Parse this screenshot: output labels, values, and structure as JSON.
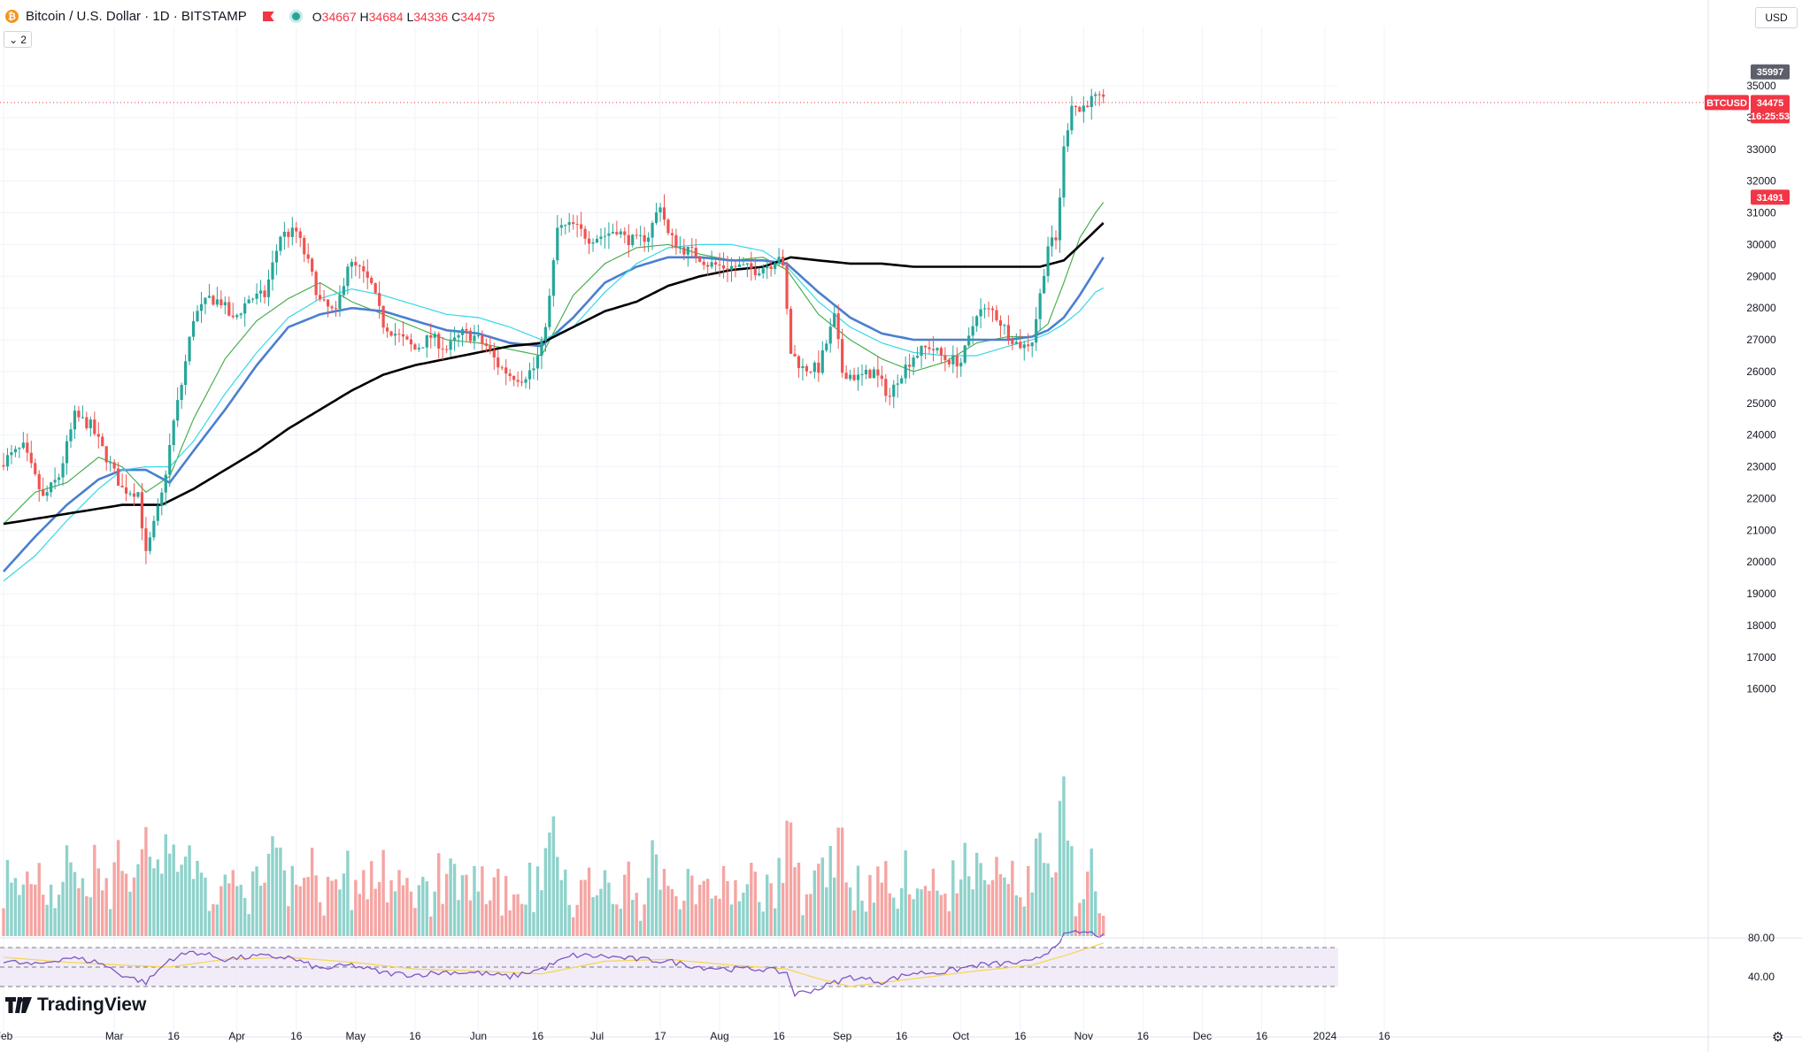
{
  "header": {
    "symbol_title": "Bitcoin / U.S. Dollar · 1D · BITSTAMP",
    "open_label": "O",
    "open": "34667",
    "high_label": "H",
    "high": "34684",
    "low_label": "L",
    "low": "34336",
    "close_label": "C",
    "close": "34475",
    "indicator_count": "2"
  },
  "toolbar": {
    "currency": "USD"
  },
  "branding": {
    "logo_text": "TradingView"
  },
  "colors": {
    "up": "#26a69a",
    "down": "#ef5350",
    "ma_blue": "#4a7fd0",
    "ma_black": "#000000",
    "ma_green": "#4caf50",
    "ma_cyan": "#37d7e8",
    "rsi_line": "#7e57c2",
    "rsi_ma": "#f7d54d",
    "price_line": "#f23645"
  },
  "chart_data": {
    "type": "candlestick",
    "symbol": "BTCUSD",
    "timeframe": "1D",
    "price_axis": {
      "ticks": [
        16000,
        17000,
        18000,
        19000,
        20000,
        21000,
        22000,
        23000,
        24000,
        25000,
        26000,
        27000,
        28000,
        29000,
        30000,
        31000,
        32000,
        33000,
        34000,
        35000
      ],
      "range": [
        15000,
        36500
      ]
    },
    "x_axis_labels": [
      {
        "label": "Feb",
        "day": 0
      },
      {
        "label": "Mar",
        "day": 28
      },
      {
        "label": "16",
        "day": 43
      },
      {
        "label": "Apr",
        "day": 59
      },
      {
        "label": "16",
        "day": 74
      },
      {
        "label": "May",
        "day": 89
      },
      {
        "label": "16",
        "day": 104
      },
      {
        "label": "Jun",
        "day": 120
      },
      {
        "label": "16",
        "day": 135
      },
      {
        "label": "Jul",
        "day": 150
      },
      {
        "label": "17",
        "day": 166
      },
      {
        "label": "Aug",
        "day": 181
      },
      {
        "label": "16",
        "day": 196
      },
      {
        "label": "Sep",
        "day": 212
      },
      {
        "label": "16",
        "day": 227
      },
      {
        "label": "Oct",
        "day": 242
      },
      {
        "label": "16",
        "day": 257
      },
      {
        "label": "Nov",
        "day": 273
      },
      {
        "label": "16",
        "day": 288
      },
      {
        "label": "Dec",
        "day": 303
      },
      {
        "label": "16",
        "day": 318
      },
      {
        "label": "2024",
        "day": 334
      },
      {
        "label": "16",
        "day": 349
      }
    ],
    "price_labels": [
      {
        "text": "35997",
        "value": 35997,
        "kind": "high"
      },
      {
        "text": "BTCUSD",
        "value": 34475,
        "kind": "symbol"
      },
      {
        "text": "34475",
        "value": 34475,
        "kind": "last"
      },
      {
        "text": "16:25:53",
        "value": 34475,
        "kind": "countdown"
      },
      {
        "text": "31491",
        "value": 31491,
        "kind": "ma"
      }
    ],
    "close_anchors": [
      [
        0,
        23200
      ],
      [
        5,
        23600
      ],
      [
        10,
        22000
      ],
      [
        14,
        22700
      ],
      [
        18,
        24600
      ],
      [
        22,
        24300
      ],
      [
        26,
        23300
      ],
      [
        30,
        22300
      ],
      [
        34,
        22200
      ],
      [
        36,
        20200
      ],
      [
        40,
        22100
      ],
      [
        43,
        24400
      ],
      [
        45,
        25600
      ],
      [
        48,
        27700
      ],
      [
        52,
        28300
      ],
      [
        55,
        28200
      ],
      [
        58,
        27600
      ],
      [
        62,
        28300
      ],
      [
        66,
        28400
      ],
      [
        70,
        30300
      ],
      [
        74,
        30400
      ],
      [
        77,
        29400
      ],
      [
        80,
        28200
      ],
      [
        84,
        27800
      ],
      [
        87,
        29400
      ],
      [
        90,
        29200
      ],
      [
        93,
        28700
      ],
      [
        96,
        27500
      ],
      [
        100,
        27100
      ],
      [
        104,
        26700
      ],
      [
        108,
        27100
      ],
      [
        112,
        26700
      ],
      [
        116,
        27200
      ],
      [
        119,
        27100
      ],
      [
        122,
        26800
      ],
      [
        125,
        26200
      ],
      [
        128,
        25900
      ],
      [
        131,
        25800
      ],
      [
        134,
        26100
      ],
      [
        136,
        26800
      ],
      [
        138,
        28300
      ],
      [
        140,
        30500
      ],
      [
        144,
        30600
      ],
      [
        148,
        30200
      ],
      [
        152,
        30300
      ],
      [
        155,
        30500
      ],
      [
        157,
        30200
      ],
      [
        160,
        30100
      ],
      [
        163,
        30300
      ],
      [
        166,
        31300
      ],
      [
        168,
        30300
      ],
      [
        171,
        29900
      ],
      [
        175,
        29700
      ],
      [
        178,
        29400
      ],
      [
        182,
        29300
      ],
      [
        186,
        29300
      ],
      [
        190,
        29200
      ],
      [
        194,
        29400
      ],
      [
        196,
        29700
      ],
      [
        197,
        29200
      ],
      [
        199,
        26600
      ],
      [
        202,
        26100
      ],
      [
        206,
        26100
      ],
      [
        210,
        27700
      ],
      [
        212,
        26000
      ],
      [
        216,
        25800
      ],
      [
        220,
        26000
      ],
      [
        224,
        25200
      ],
      [
        226,
        25800
      ],
      [
        230,
        26500
      ],
      [
        234,
        26800
      ],
      [
        238,
        26400
      ],
      [
        242,
        26300
      ],
      [
        244,
        27000
      ],
      [
        246,
        27900
      ],
      [
        250,
        27900
      ],
      [
        254,
        27200
      ],
      [
        256,
        26900
      ],
      [
        258,
        26800
      ],
      [
        260,
        27000
      ],
      [
        262,
        28400
      ],
      [
        264,
        30000
      ],
      [
        266,
        30100
      ],
      [
        268,
        33000
      ],
      [
        270,
        34500
      ],
      [
        272,
        34200
      ],
      [
        274,
        34500
      ],
      [
        276,
        34600
      ],
      [
        278,
        34475
      ]
    ],
    "ma_series": [
      {
        "color": "#4caf50",
        "period": 20,
        "anchors": [
          [
            0,
            21200
          ],
          [
            8,
            22200
          ],
          [
            16,
            22500
          ],
          [
            24,
            23300
          ],
          [
            30,
            23000
          ],
          [
            36,
            22200
          ],
          [
            42,
            22700
          ],
          [
            48,
            24500
          ],
          [
            56,
            26400
          ],
          [
            64,
            27600
          ],
          [
            72,
            28300
          ],
          [
            80,
            28800
          ],
          [
            88,
            28200
          ],
          [
            96,
            27800
          ],
          [
            104,
            27400
          ],
          [
            112,
            27000
          ],
          [
            120,
            26900
          ],
          [
            128,
            26700
          ],
          [
            136,
            26500
          ],
          [
            144,
            28400
          ],
          [
            152,
            29400
          ],
          [
            160,
            29900
          ],
          [
            168,
            30000
          ],
          [
            176,
            29700
          ],
          [
            184,
            29500
          ],
          [
            192,
            29600
          ],
          [
            198,
            29200
          ],
          [
            206,
            27800
          ],
          [
            214,
            27000
          ],
          [
            222,
            26400
          ],
          [
            230,
            26000
          ],
          [
            238,
            26300
          ],
          [
            246,
            26900
          ],
          [
            254,
            27100
          ],
          [
            260,
            27100
          ],
          [
            264,
            27500
          ],
          [
            268,
            28800
          ],
          [
            272,
            30200
          ],
          [
            276,
            31000
          ],
          [
            279,
            31491
          ]
        ]
      },
      {
        "color": "#4a7fd0",
        "period": 50,
        "anchors": [
          [
            0,
            19700
          ],
          [
            8,
            20800
          ],
          [
            16,
            21800
          ],
          [
            24,
            22600
          ],
          [
            30,
            22900
          ],
          [
            36,
            22900
          ],
          [
            42,
            22500
          ],
          [
            48,
            23500
          ],
          [
            56,
            24800
          ],
          [
            64,
            26200
          ],
          [
            72,
            27400
          ],
          [
            80,
            27800
          ],
          [
            88,
            28000
          ],
          [
            96,
            27900
          ],
          [
            104,
            27600
          ],
          [
            112,
            27300
          ],
          [
            120,
            27200
          ],
          [
            128,
            26900
          ],
          [
            136,
            26800
          ],
          [
            144,
            27700
          ],
          [
            152,
            28800
          ],
          [
            160,
            29300
          ],
          [
            168,
            29600
          ],
          [
            176,
            29600
          ],
          [
            184,
            29500
          ],
          [
            192,
            29500
          ],
          [
            198,
            29400
          ],
          [
            206,
            28500
          ],
          [
            214,
            27700
          ],
          [
            222,
            27200
          ],
          [
            230,
            27000
          ],
          [
            238,
            27000
          ],
          [
            246,
            27000
          ],
          [
            254,
            27000
          ],
          [
            260,
            27100
          ],
          [
            264,
            27300
          ],
          [
            268,
            27700
          ],
          [
            272,
            28400
          ],
          [
            276,
            29200
          ],
          [
            279,
            29800
          ]
        ]
      },
      {
        "color": "#37d7e8",
        "period": 30,
        "anchors": [
          [
            0,
            19400
          ],
          [
            8,
            20200
          ],
          [
            16,
            21300
          ],
          [
            24,
            22300
          ],
          [
            30,
            22900
          ],
          [
            36,
            23000
          ],
          [
            42,
            23000
          ],
          [
            48,
            23800
          ],
          [
            56,
            25300
          ],
          [
            64,
            26600
          ],
          [
            72,
            27700
          ],
          [
            80,
            28300
          ],
          [
            88,
            28600
          ],
          [
            96,
            28400
          ],
          [
            104,
            28100
          ],
          [
            112,
            27800
          ],
          [
            120,
            27700
          ],
          [
            128,
            27400
          ],
          [
            136,
            27000
          ],
          [
            144,
            27400
          ],
          [
            152,
            28500
          ],
          [
            160,
            29400
          ],
          [
            168,
            29900
          ],
          [
            176,
            30000
          ],
          [
            184,
            30000
          ],
          [
            192,
            29800
          ],
          [
            198,
            29300
          ],
          [
            206,
            28200
          ],
          [
            214,
            27400
          ],
          [
            222,
            26900
          ],
          [
            230,
            26600
          ],
          [
            238,
            26500
          ],
          [
            246,
            26500
          ],
          [
            254,
            26800
          ],
          [
            260,
            27000
          ],
          [
            264,
            27200
          ],
          [
            268,
            27500
          ],
          [
            272,
            27900
          ],
          [
            276,
            28500
          ],
          [
            279,
            28700
          ]
        ]
      },
      {
        "color": "#000000",
        "period": 200,
        "anchors": [
          [
            0,
            21200
          ],
          [
            10,
            21400
          ],
          [
            20,
            21600
          ],
          [
            30,
            21800
          ],
          [
            40,
            21800
          ],
          [
            48,
            22300
          ],
          [
            56,
            22900
          ],
          [
            64,
            23500
          ],
          [
            72,
            24200
          ],
          [
            80,
            24800
          ],
          [
            88,
            25400
          ],
          [
            96,
            25900
          ],
          [
            104,
            26200
          ],
          [
            112,
            26400
          ],
          [
            120,
            26600
          ],
          [
            128,
            26800
          ],
          [
            136,
            26900
          ],
          [
            144,
            27400
          ],
          [
            152,
            27900
          ],
          [
            160,
            28200
          ],
          [
            168,
            28700
          ],
          [
            176,
            29000
          ],
          [
            184,
            29200
          ],
          [
            192,
            29300
          ],
          [
            199,
            29600
          ],
          [
            206,
            29500
          ],
          [
            214,
            29400
          ],
          [
            222,
            29400
          ],
          [
            230,
            29300
          ],
          [
            238,
            29300
          ],
          [
            246,
            29300
          ],
          [
            254,
            29300
          ],
          [
            262,
            29300
          ],
          [
            268,
            29500
          ],
          [
            274,
            30200
          ],
          [
            279,
            30800
          ]
        ]
      }
    ],
    "rsi": {
      "levels": [
        {
          "text": "80.00",
          "value": 80
        },
        {
          "text": "40.00",
          "value": 40
        }
      ],
      "band": [
        30,
        70
      ],
      "anchors": [
        [
          0,
          56
        ],
        [
          8,
          52
        ],
        [
          16,
          60
        ],
        [
          24,
          55
        ],
        [
          30,
          42
        ],
        [
          36,
          34
        ],
        [
          42,
          58
        ],
        [
          48,
          66
        ],
        [
          56,
          58
        ],
        [
          64,
          61
        ],
        [
          72,
          60
        ],
        [
          80,
          48
        ],
        [
          88,
          52
        ],
        [
          96,
          44
        ],
        [
          104,
          42
        ],
        [
          112,
          45
        ],
        [
          120,
          44
        ],
        [
          128,
          40
        ],
        [
          136,
          48
        ],
        [
          144,
          62
        ],
        [
          152,
          61
        ],
        [
          160,
          58
        ],
        [
          168,
          56
        ],
        [
          176,
          50
        ],
        [
          184,
          48
        ],
        [
          192,
          48
        ],
        [
          198,
          44
        ],
        [
          200,
          22
        ],
        [
          206,
          28
        ],
        [
          214,
          40
        ],
        [
          222,
          35
        ],
        [
          230,
          44
        ],
        [
          238,
          45
        ],
        [
          246,
          52
        ],
        [
          254,
          54
        ],
        [
          260,
          55
        ],
        [
          264,
          66
        ],
        [
          268,
          82
        ],
        [
          272,
          86
        ],
        [
          276,
          84
        ],
        [
          279,
          80
        ]
      ],
      "ma_anchors": [
        [
          0,
          60
        ],
        [
          16,
          55
        ],
        [
          30,
          52
        ],
        [
          42,
          50
        ],
        [
          56,
          58
        ],
        [
          72,
          60
        ],
        [
          88,
          55
        ],
        [
          104,
          48
        ],
        [
          120,
          46
        ],
        [
          136,
          43
        ],
        [
          152,
          56
        ],
        [
          168,
          58
        ],
        [
          184,
          52
        ],
        [
          198,
          48
        ],
        [
          206,
          38
        ],
        [
          214,
          30
        ],
        [
          222,
          34
        ],
        [
          230,
          38
        ],
        [
          246,
          46
        ],
        [
          260,
          52
        ],
        [
          270,
          64
        ],
        [
          279,
          76
        ]
      ]
    }
  }
}
